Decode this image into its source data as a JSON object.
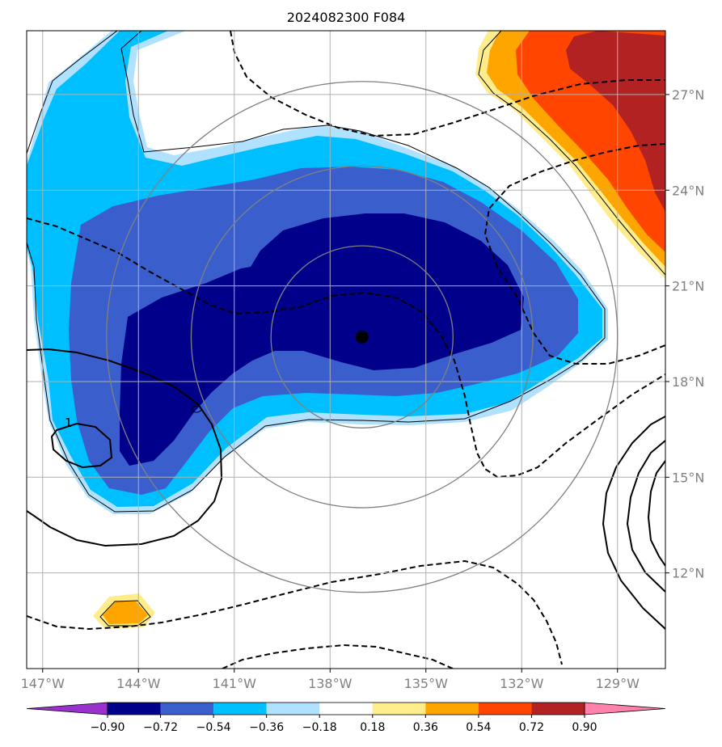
{
  "title": "2024082300 F084",
  "chart_data": {
    "type": "map-contour",
    "title": "2024082300 F084",
    "projection": "lon-lat",
    "xlim": [
      -147.5,
      -127.5
    ],
    "ylim": [
      9,
      29
    ],
    "x_ticks": [
      {
        "value": -147,
        "label": "147°W"
      },
      {
        "value": -144,
        "label": "144°W"
      },
      {
        "value": -141,
        "label": "141°W"
      },
      {
        "value": -138,
        "label": "138°W"
      },
      {
        "value": -135,
        "label": "135°W"
      },
      {
        "value": -132,
        "label": "132°W"
      },
      {
        "value": -129,
        "label": "129°W"
      }
    ],
    "y_ticks": [
      {
        "value": 12,
        "label": "12°N"
      },
      {
        "value": 15,
        "label": "15°N"
      },
      {
        "value": 18,
        "label": "18°N"
      },
      {
        "value": 21,
        "label": "21°N"
      },
      {
        "value": 24,
        "label": "24°N"
      },
      {
        "value": 27,
        "label": "27°N"
      }
    ],
    "grid": true,
    "center_marker": {
      "lon": -137.0,
      "lat": 19.4
    },
    "range_rings_deg": [
      2.85,
      5.35,
      8.0
    ],
    "contour_labels": [
      "1"
    ],
    "colorbar": {
      "levels": [
        "−0.90",
        "−0.72",
        "−0.54",
        "−0.36",
        "−0.18",
        "0.18",
        "0.36",
        "0.54",
        "0.72",
        "0.90"
      ],
      "colors": [
        "#9932cc",
        "#00008b",
        "#3a5fcd",
        "#00bfff",
        "#b0e2ff",
        "#ffffff",
        "#ffec8b",
        "#ffa500",
        "#ff4500",
        "#b22222",
        "#ff82ab"
      ],
      "extend": "both"
    },
    "fill_colors": {
      "lt_m090": "#9932cc",
      "m090_m072": "#00008b",
      "m072_m054": "#3a5fcd",
      "m054_m036": "#00bfff",
      "m036_m018": "#b0e2ff",
      "p018_p036": "#ffec8b",
      "p036_p054": "#ffa500",
      "p054_p072": "#ff4500",
      "p072_p090": "#b22222"
    }
  }
}
